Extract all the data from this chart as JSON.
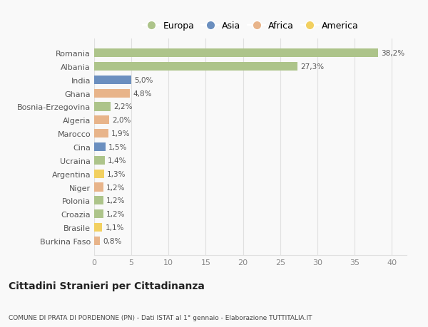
{
  "countries": [
    "Burkina Faso",
    "Brasile",
    "Croazia",
    "Polonia",
    "Niger",
    "Argentina",
    "Ucraina",
    "Cina",
    "Marocco",
    "Algeria",
    "Bosnia-Erzegovina",
    "Ghana",
    "India",
    "Albania",
    "Romania"
  ],
  "values": [
    0.8,
    1.1,
    1.2,
    1.2,
    1.2,
    1.3,
    1.4,
    1.5,
    1.9,
    2.0,
    2.2,
    4.8,
    5.0,
    27.3,
    38.2
  ],
  "continents": [
    "Africa",
    "America",
    "Europa",
    "Europa",
    "Africa",
    "America",
    "Europa",
    "Asia",
    "Africa",
    "Africa",
    "Europa",
    "Africa",
    "Asia",
    "Europa",
    "Europa"
  ],
  "continent_colors": {
    "Europa": "#adc48a",
    "Asia": "#6b8fbf",
    "Africa": "#e8b48a",
    "America": "#f2d060"
  },
  "legend_order": [
    "Europa",
    "Asia",
    "Africa",
    "America"
  ],
  "title": "Cittadini Stranieri per Cittadinanza",
  "subtitle": "COMUNE DI PRATA DI PORDENONE (PN) - Dati ISTAT al 1° gennaio - Elaborazione TUTTITALIA.IT",
  "xlim": [
    0,
    42
  ],
  "xticks": [
    0,
    5,
    10,
    15,
    20,
    25,
    30,
    35,
    40
  ],
  "background_color": "#f9f9f9",
  "grid_color": "#e0e0e0",
  "bar_height": 0.65
}
